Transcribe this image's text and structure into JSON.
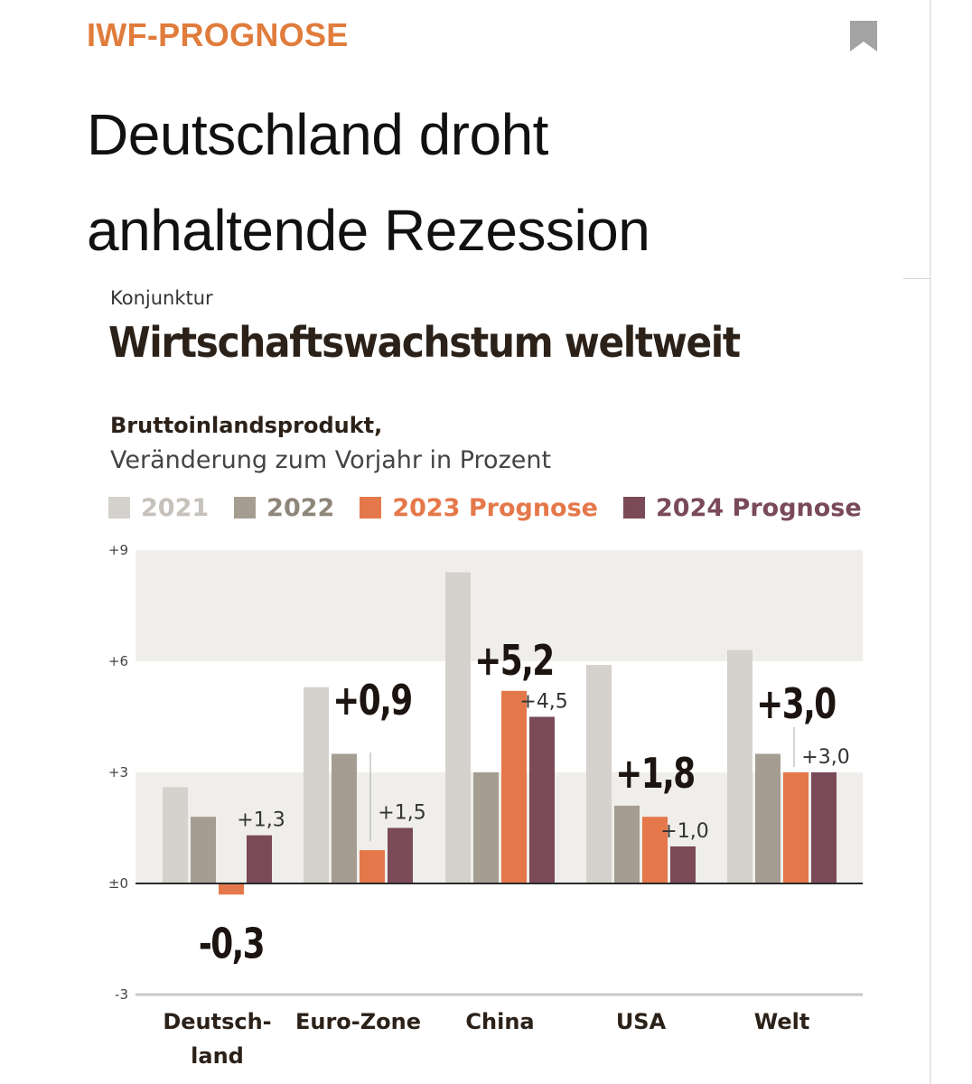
{
  "article": {
    "kicker": "IWF-PROGNOSE",
    "headline_line1": "Deutschland droht",
    "headline_line2": "anhaltende Rezession"
  },
  "icons": {
    "bookmark": "bookmark-icon"
  },
  "chart_data": {
    "type": "bar",
    "rubric": "Konjunktur",
    "title": "Wirtschaftswachstum weltweit",
    "subtitle_bold": "Bruttoinlandsprodukt,",
    "subtitle": "Veränderung zum Vorjahr in Prozent",
    "categories": [
      [
        "Deutsch-",
        "land"
      ],
      [
        "Euro-Zone"
      ],
      [
        "China"
      ],
      [
        "USA"
      ],
      [
        "Welt"
      ]
    ],
    "series": [
      {
        "name": "2021",
        "color": "#d5d1cc",
        "legend_color": "#c6c1bb",
        "values": [
          2.6,
          5.3,
          8.4,
          5.9,
          6.3
        ]
      },
      {
        "name": "2022",
        "color": "#a69d92",
        "legend_color": "#8f867b",
        "values": [
          1.8,
          3.5,
          3.0,
          2.1,
          3.5
        ]
      },
      {
        "name": "2023 Prognose",
        "color": "#e5784a",
        "legend_color": "#e5784a",
        "values": [
          -0.3,
          0.9,
          5.2,
          1.8,
          3.0
        ]
      },
      {
        "name": "2024 Prognose",
        "color": "#7a4a58",
        "legend_color": "#7a4a58",
        "values": [
          1.3,
          1.5,
          4.5,
          1.0,
          3.0
        ]
      }
    ],
    "big_labels": [
      "-0,3",
      "+0,9",
      "+5,2",
      "+1,8",
      "+3,0"
    ],
    "small_labels": [
      "+1,3",
      "+1,5",
      "+4,5",
      "+1,0",
      "+3,0"
    ],
    "y_ticks": [
      {
        "value": 9,
        "label": "+9"
      },
      {
        "value": 6,
        "label": "+6"
      },
      {
        "value": 3,
        "label": "+3"
      },
      {
        "value": 0,
        "label": "±0"
      },
      {
        "value": -3,
        "label": "-3"
      }
    ],
    "ylim": [
      -3,
      9
    ],
    "grid_bands": true,
    "legend_position": "top"
  }
}
